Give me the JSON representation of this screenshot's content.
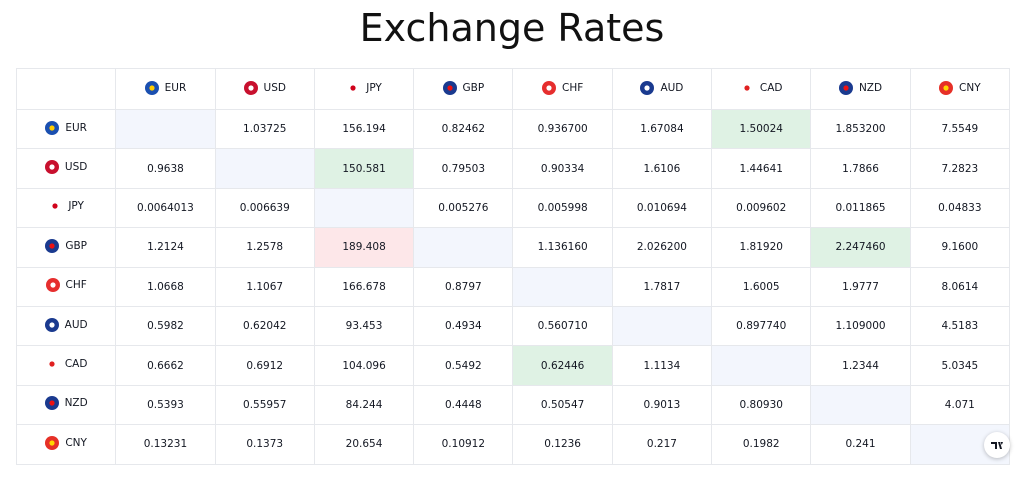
{
  "title": "Exchange Rates",
  "table": {
    "columns": [
      "EUR",
      "USD",
      "JPY",
      "GBP",
      "CHF",
      "AUD",
      "CAD",
      "NZD",
      "CNY"
    ],
    "rows": [
      {
        "currency": "EUR",
        "values": [
          null,
          "1.03725",
          "156.194",
          "0.82462",
          "0.936700",
          "1.67084",
          "1.50024",
          "1.853200",
          "7.5549"
        ]
      },
      {
        "currency": "USD",
        "values": [
          "0.9638",
          null,
          "150.581",
          "0.79503",
          "0.90334",
          "1.6106",
          "1.44641",
          "1.7866",
          "7.2823"
        ]
      },
      {
        "currency": "JPY",
        "values": [
          "0.0064013",
          "0.006639",
          null,
          "0.005276",
          "0.005998",
          "0.010694",
          "0.009602",
          "0.011865",
          "0.04833"
        ]
      },
      {
        "currency": "GBP",
        "values": [
          "1.2124",
          "1.2578",
          "189.408",
          null,
          "1.136160",
          "2.026200",
          "1.81920",
          "2.247460",
          "9.1600"
        ]
      },
      {
        "currency": "CHF",
        "values": [
          "1.0668",
          "1.1067",
          "166.678",
          "0.8797",
          null,
          "1.7817",
          "1.6005",
          "1.9777",
          "8.0614"
        ]
      },
      {
        "currency": "AUD",
        "values": [
          "0.5982",
          "0.62042",
          "93.453",
          "0.4934",
          "0.560710",
          null,
          "0.897740",
          "1.109000",
          "4.5183"
        ]
      },
      {
        "currency": "CAD",
        "values": [
          "0.6662",
          "0.6912",
          "104.096",
          "0.5492",
          "0.62446",
          "1.1134",
          null,
          "1.2344",
          "5.0345"
        ]
      },
      {
        "currency": "NZD",
        "values": [
          "0.5393",
          "0.55957",
          "84.244",
          "0.4448",
          "0.50547",
          "0.9013",
          "0.80930",
          null,
          "4.071"
        ]
      },
      {
        "currency": "CNY",
        "values": [
          "0.13231",
          "0.1373",
          "20.654",
          "0.10912",
          "0.1236",
          "0.217",
          "0.1982",
          "0.241",
          null
        ]
      }
    ]
  }
}
